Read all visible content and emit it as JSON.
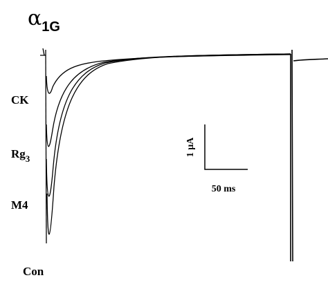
{
  "title": {
    "main": "α",
    "sub": "1G"
  },
  "traces": [
    {
      "label": {
        "main": "CK"
      }
    },
    {
      "label": {
        "main": "Rg",
        "sub": "3"
      }
    },
    {
      "label": {
        "main": "M4"
      }
    },
    {
      "label": {
        "main": "Con"
      }
    }
  ],
  "scale_bar": {
    "y_label": "1 μA",
    "x_label": "50 ms"
  }
}
